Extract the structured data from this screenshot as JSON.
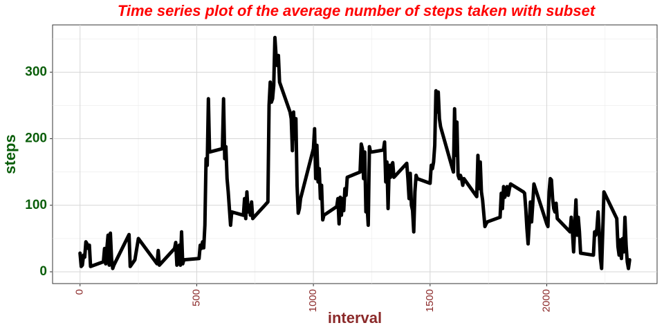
{
  "chart_data": {
    "type": "line",
    "title": "Time series plot of the average number of steps taken with subset",
    "title_color": "#ff0000",
    "x_label": "interval",
    "x_label_color": "#8b2a2a",
    "y_label": "steps",
    "y_label_color": "#0b5e0b",
    "x_tick_color": "#8b2a2a",
    "y_tick_color": "#0b5e0b",
    "grid": true,
    "xlim": [
      -117.75,
      2472.75
    ],
    "ylim": [
      -17.7,
      371
    ],
    "xticks": [
      0,
      500,
      1000,
      1500,
      2000
    ],
    "yticks": [
      0,
      100,
      200,
      300
    ],
    "x": [
      0,
      5,
      10,
      15,
      20,
      25,
      30,
      35,
      40,
      45,
      100,
      105,
      110,
      115,
      120,
      125,
      130,
      135,
      140,
      145,
      210,
      215,
      235,
      250,
      330,
      335,
      340,
      405,
      410,
      415,
      420,
      425,
      430,
      435,
      440,
      445,
      510,
      515,
      520,
      525,
      530,
      535,
      540,
      545,
      550,
      555,
      610,
      615,
      620,
      625,
      630,
      635,
      640,
      645,
      650,
      700,
      705,
      710,
      715,
      720,
      725,
      730,
      735,
      740,
      805,
      810,
      815,
      820,
      825,
      830,
      835,
      840,
      845,
      850,
      855,
      900,
      905,
      910,
      915,
      920,
      925,
      930,
      935,
      940,
      945,
      1000,
      1005,
      1010,
      1015,
      1020,
      1025,
      1030,
      1035,
      1040,
      1045,
      1100,
      1105,
      1110,
      1115,
      1120,
      1125,
      1130,
      1135,
      1140,
      1145,
      1200,
      1205,
      1210,
      1215,
      1220,
      1225,
      1230,
      1235,
      1240,
      1245,
      1250,
      1300,
      1305,
      1310,
      1315,
      1320,
      1325,
      1330,
      1335,
      1340,
      1345,
      1400,
      1405,
      1410,
      1415,
      1420,
      1425,
      1430,
      1435,
      1440,
      1445,
      1500,
      1505,
      1510,
      1515,
      1520,
      1525,
      1530,
      1535,
      1540,
      1545,
      1600,
      1605,
      1610,
      1615,
      1620,
      1625,
      1630,
      1635,
      1640,
      1645,
      1700,
      1705,
      1710,
      1715,
      1720,
      1725,
      1730,
      1735,
      1740,
      1745,
      1800,
      1805,
      1810,
      1815,
      1820,
      1825,
      1830,
      1835,
      1840,
      1845,
      1900,
      1905,
      1910,
      1915,
      1920,
      1925,
      1930,
      1935,
      1940,
      1945,
      2000,
      2005,
      2010,
      2015,
      2020,
      2025,
      2030,
      2035,
      2040,
      2045,
      2100,
      2105,
      2110,
      2115,
      2120,
      2125,
      2130,
      2135,
      2140,
      2145,
      2200,
      2205,
      2210,
      2215,
      2220,
      2225,
      2230,
      2235,
      2240,
      2245,
      2300,
      2305,
      2310,
      2315,
      2320,
      2325,
      2330,
      2335,
      2340,
      2345,
      2350,
      2355
    ],
    "series": [
      {
        "color": "#000000",
        "values": [
          28,
          8,
          10,
          25,
          22,
          45,
          42,
          35,
          40,
          8,
          15,
          35,
          12,
          35,
          55,
          10,
          58,
          20,
          5,
          10,
          56,
          8,
          18,
          50,
          12,
          32,
          10,
          35,
          44,
          10,
          20,
          40,
          10,
          60,
          12,
          18,
          20,
          40,
          35,
          45,
          36,
          70,
          170,
          160,
          260,
          180,
          185,
          260,
          170,
          188,
          140,
          120,
          95,
          70,
          90,
          85,
          110,
          80,
          120,
          90,
          100,
          85,
          105,
          80,
          105,
          250,
          285,
          255,
          260,
          280,
          352,
          325,
          310,
          325,
          285,
          240,
          230,
          182,
          240,
          200,
          230,
          130,
          88,
          95,
          110,
          185,
          215,
          140,
          190,
          135,
          155,
          110,
          130,
          78,
          85,
          98,
          110,
          72,
          112,
          85,
          110,
          92,
          125,
          115,
          142,
          150,
          192,
          185,
          140,
          180,
          90,
          100,
          70,
          188,
          180,
          180,
          183,
          195,
          135,
          165,
          95,
          160,
          142,
          160,
          164,
          142,
          163,
          140,
          110,
          148,
          100,
          92,
          60,
          120,
          145,
          140,
          133,
          160,
          155,
          165,
          190,
          272,
          240,
          270,
          230,
          218,
          150,
          245,
          175,
          225,
          145,
          140,
          145,
          140,
          130,
          140,
          113,
          175,
          125,
          165,
          120,
          108,
          88,
          68,
          72,
          75,
          82,
          118,
          95,
          128,
          112,
          118,
          128,
          115,
          125,
          132,
          120,
          118,
          95,
          65,
          42,
          72,
          105,
          75,
          102,
          132,
          72,
          68,
          120,
          140,
          138,
          110,
          95,
          90,
          103,
          80,
          60,
          82,
          60,
          30,
          70,
          108,
          55,
          82,
          60,
          28,
          25,
          60,
          55,
          65,
          90,
          58,
          20,
          5,
          62,
          120,
          80,
          38,
          25,
          48,
          20,
          50,
          30,
          82,
          40,
          15,
          5,
          18
        ]
      }
    ]
  }
}
